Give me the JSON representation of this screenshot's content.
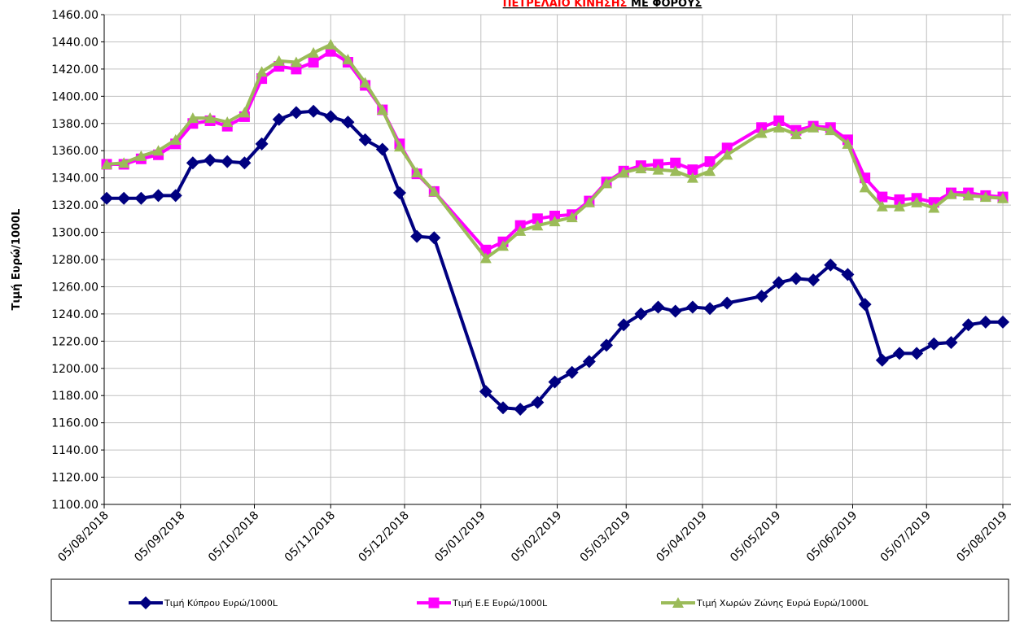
{
  "chart_data": {
    "type": "line",
    "title": [
      "ΠΕΤΡΕΛΑΙΟ ΚΙΝΗΣΗΣ",
      "ΜΕ ΦΟΡΟΥΣ"
    ],
    "y_label": "Τιμή Ευρώ/1000L",
    "x": [
      "2018-08-06",
      "2018-08-13",
      "2018-08-20",
      "2018-08-27",
      "2018-09-03",
      "2018-09-10",
      "2018-09-17",
      "2018-09-24",
      "2018-10-01",
      "2018-10-08",
      "2018-10-15",
      "2018-10-22",
      "2018-10-29",
      "2018-11-05",
      "2018-11-12",
      "2018-11-19",
      "2018-11-26",
      "2018-12-03",
      "2018-12-10",
      "2018-12-17",
      "2019-01-07",
      "2019-01-14",
      "2019-01-21",
      "2019-01-28",
      "2019-02-04",
      "2019-02-11",
      "2019-02-18",
      "2019-02-25",
      "2019-03-04",
      "2019-03-11",
      "2019-03-18",
      "2019-03-25",
      "2019-04-01",
      "2019-04-08",
      "2019-04-15",
      "2019-04-29",
      "2019-05-06",
      "2019-05-13",
      "2019-05-20",
      "2019-05-27",
      "2019-06-03",
      "2019-06-10",
      "2019-06-17",
      "2019-06-24",
      "2019-07-01",
      "2019-07-08",
      "2019-07-15",
      "2019-07-22",
      "2019-07-29",
      "2019-08-05"
    ],
    "series": [
      {
        "name": "Τιμή Κύπρου Ευρώ/1000L",
        "color": "#000080",
        "marker": "diamond",
        "values": [
          1325,
          1325,
          1325,
          1327,
          1327,
          1351,
          1353,
          1352,
          1351,
          1365,
          1383,
          1388,
          1389,
          1385,
          1381,
          1368,
          1361,
          1329,
          1297,
          1296,
          1183,
          1171,
          1170,
          1175,
          1190,
          1197,
          1205,
          1217,
          1232,
          1240,
          1245,
          1242,
          1245,
          1244,
          1248,
          1253,
          1263,
          1266,
          1265,
          1276,
          1269,
          1247,
          1206,
          1211,
          1211,
          1218,
          1219,
          1232,
          1234,
          1234
        ]
      },
      {
        "name": "Τιμή Ε.Ε Ευρώ/1000L",
        "color": "#ff00ff",
        "marker": "square",
        "values": [
          1350,
          1350,
          1354,
          1357,
          1365,
          1380,
          1382,
          1378,
          1385,
          1413,
          1422,
          1420,
          1425,
          1433,
          1425,
          1408,
          1390,
          1365,
          1343,
          1330,
          1287,
          1293,
          1305,
          1310,
          1312,
          1313,
          1323,
          1337,
          1345,
          1349,
          1350,
          1351,
          1346,
          1352,
          1362,
          1377,
          1382,
          1375,
          1378,
          1377,
          1368,
          1340,
          1326,
          1324,
          1325,
          1322,
          1329,
          1329,
          1327,
          1326
        ]
      },
      {
        "name": "Τιμή Χωρών  Ζώνης Ευρώ  Ευρώ/1000L",
        "color": "#9bbb59",
        "marker": "triangle",
        "values": [
          1350,
          1351,
          1356,
          1360,
          1368,
          1384,
          1384,
          1381,
          1388,
          1418,
          1426,
          1425,
          1432,
          1438,
          1427,
          1410,
          1390,
          1363,
          1344,
          1330,
          1281,
          1290,
          1301,
          1305,
          1308,
          1311,
          1322,
          1336,
          1344,
          1347,
          1346,
          1345,
          1340,
          1345,
          1357,
          1373,
          1377,
          1372,
          1377,
          1375,
          1365,
          1333,
          1319,
          1319,
          1322,
          1318,
          1328,
          1327,
          1326,
          1325
        ]
      }
    ],
    "xlim": [
      "2018-08-05",
      "2019-08-05"
    ],
    "xticks": [
      {
        "value": "2018-08-05",
        "label": "05/08/2018"
      },
      {
        "value": "2018-09-05",
        "label": "05/09/2018"
      },
      {
        "value": "2018-10-05",
        "label": "05/10/2018"
      },
      {
        "value": "2018-11-05",
        "label": "05/11/2018"
      },
      {
        "value": "2018-12-05",
        "label": "05/12/2018"
      },
      {
        "value": "2019-01-05",
        "label": "05/01/2019"
      },
      {
        "value": "2019-02-05",
        "label": "05/02/2019"
      },
      {
        "value": "2019-03-05",
        "label": "05/03/2019"
      },
      {
        "value": "2019-04-05",
        "label": "05/04/2019"
      },
      {
        "value": "2019-05-05",
        "label": "05/05/2019"
      },
      {
        "value": "2019-06-05",
        "label": "05/06/2019"
      },
      {
        "value": "2019-07-05",
        "label": "05/07/2019"
      },
      {
        "value": "2019-08-05",
        "label": "05/08/2019"
      }
    ],
    "ylim": [
      1100,
      1460
    ],
    "yticks": [
      {
        "value": 1100,
        "label": "1100.00"
      },
      {
        "value": 1120,
        "label": "1120.00"
      },
      {
        "value": 1140,
        "label": "1140.00"
      },
      {
        "value": 1160,
        "label": "1160.00"
      },
      {
        "value": 1180,
        "label": "1180.00"
      },
      {
        "value": 1200,
        "label": "1200.00"
      },
      {
        "value": 1220,
        "label": "1220.00"
      },
      {
        "value": 1240,
        "label": "1240.00"
      },
      {
        "value": 1260,
        "label": "1260.00"
      },
      {
        "value": 1280,
        "label": "1280.00"
      },
      {
        "value": 1300,
        "label": "1300.00"
      },
      {
        "value": 1320,
        "label": "1320.00"
      },
      {
        "value": 1340,
        "label": "1340.00"
      },
      {
        "value": 1360,
        "label": "1360.00"
      },
      {
        "value": 1380,
        "label": "1380.00"
      },
      {
        "value": 1400,
        "label": "1400.00"
      },
      {
        "value": 1420,
        "label": "1420.00"
      },
      {
        "value": 1440,
        "label": "1440.00"
      },
      {
        "value": 1460,
        "label": "1460.00"
      }
    ],
    "grid": true,
    "legend": "bottom"
  }
}
